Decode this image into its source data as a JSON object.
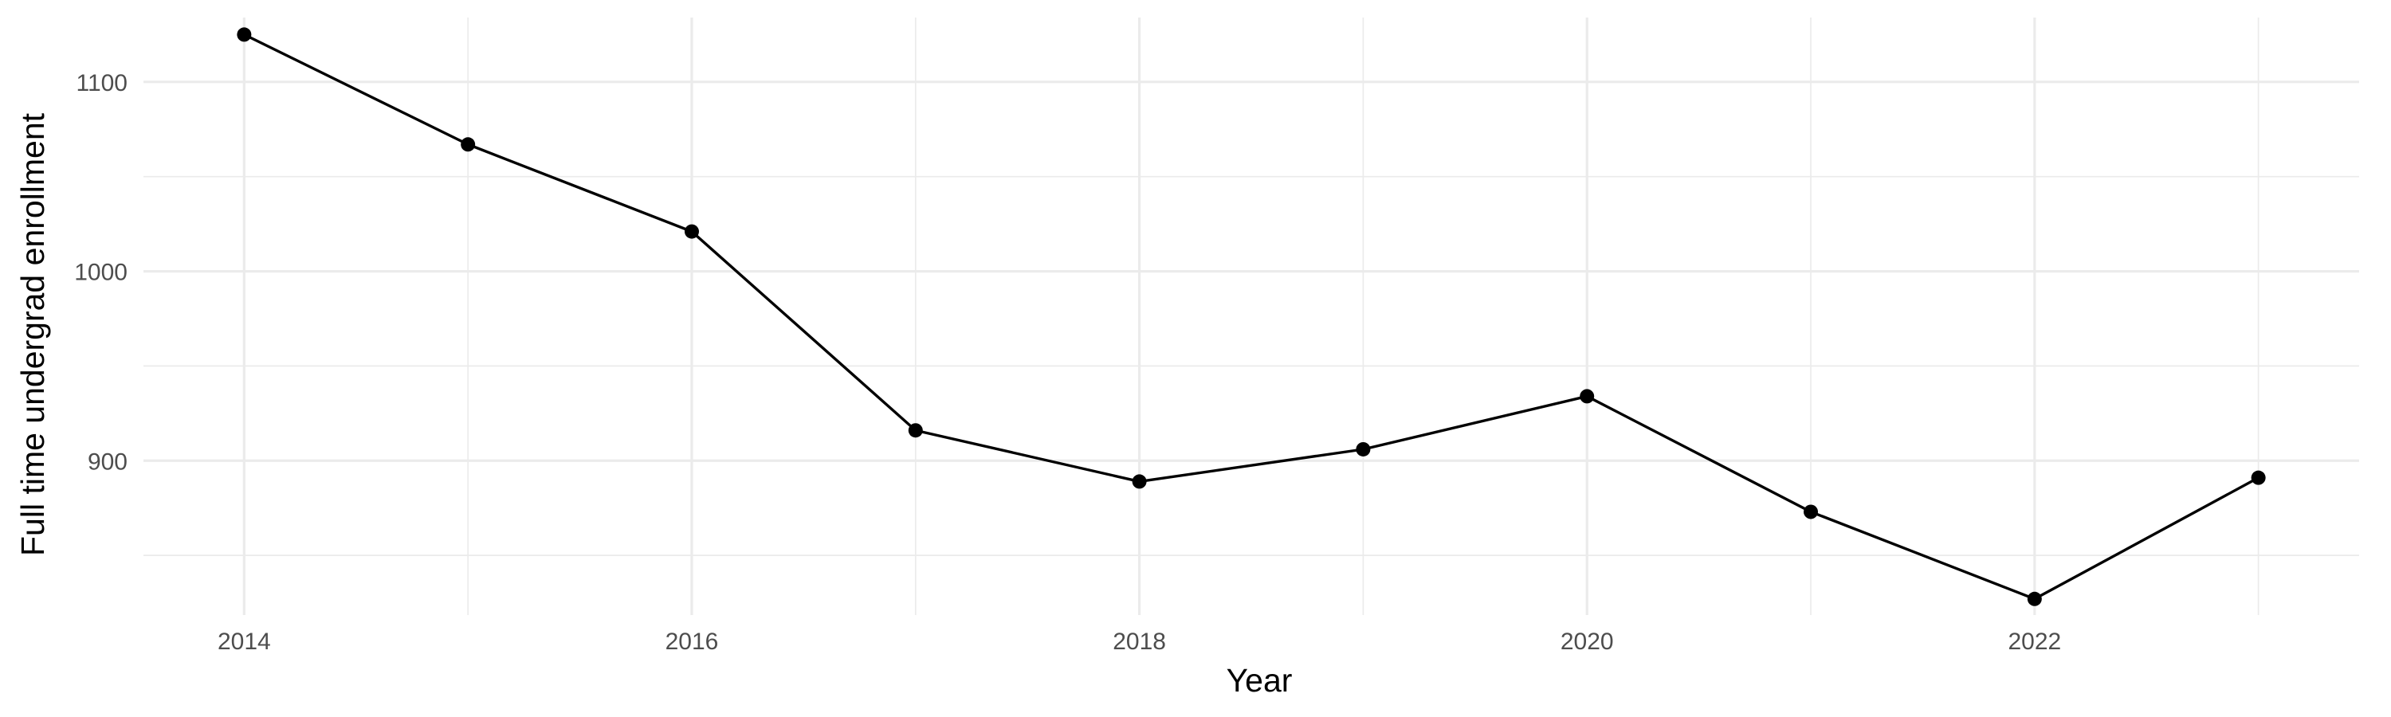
{
  "chart_data": {
    "type": "line",
    "title": "",
    "xlabel": "Year",
    "ylabel": "Full time undergrad enrollment",
    "x": [
      2014,
      2015,
      2016,
      2017,
      2018,
      2019,
      2020,
      2021,
      2022,
      2023
    ],
    "series": [
      {
        "name": "",
        "values": [
          1125,
          1067,
          1021,
          916,
          889,
          906,
          934,
          873,
          827,
          891
        ],
        "color": "#000000"
      }
    ],
    "xlim": [
      2013.55,
      2023.45
    ],
    "ylim": [
      818.5,
      1134
    ],
    "x_ticks": [
      2014,
      2016,
      2018,
      2020,
      2022
    ],
    "x_tick_labels": [
      "2014",
      "2016",
      "2018",
      "2020",
      "2022"
    ],
    "x_minor_ticks": [
      2015,
      2017,
      2019,
      2021,
      2023
    ],
    "y_ticks": [
      900,
      1000,
      1100
    ],
    "y_tick_labels": [
      "900",
      "1000",
      "1100"
    ],
    "y_minor_ticks": [
      850,
      950,
      1050
    ],
    "grid": true,
    "legend": "none",
    "background": "#ffffff",
    "grid_color": "#ebebeb"
  }
}
